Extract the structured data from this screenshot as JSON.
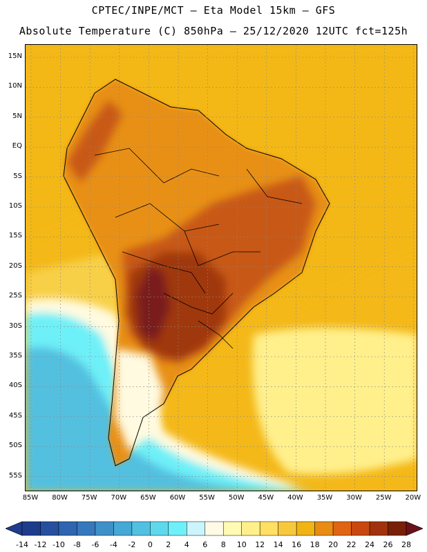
{
  "header": {
    "line1": "CPTEC/INPE/MCT –  Eta Model 15km – GFS",
    "line2": "Absolute Temperature (C) 850hPa – 25/12/2020 12UTC fct=125h"
  },
  "axes": {
    "lat_labels": [
      "15N",
      "10N",
      "5N",
      "EQ",
      "5S",
      "10S",
      "15S",
      "20S",
      "25S",
      "30S",
      "35S",
      "40S",
      "45S",
      "50S",
      "55S"
    ],
    "lon_labels": [
      "85W",
      "80W",
      "75W",
      "70W",
      "65W",
      "60W",
      "55W",
      "50W",
      "45W",
      "40W",
      "35W",
      "30W",
      "25W",
      "20W"
    ]
  },
  "colorbar": {
    "labels": [
      "-14",
      "-12",
      "-10",
      "-8",
      "-6",
      "-4",
      "-2",
      "0",
      "2",
      "4",
      "6",
      "8",
      "10",
      "12",
      "14",
      "16",
      "18",
      "20",
      "22",
      "24",
      "26",
      "28"
    ],
    "colors": [
      "#1e3c8c",
      "#26509e",
      "#2e64b0",
      "#3678bc",
      "#3e90c8",
      "#46a8d4",
      "#52c0e0",
      "#5ed8ec",
      "#6ef0f8",
      "#ccf4fc",
      "#fffae6",
      "#fffab4",
      "#fff08c",
      "#ffe064",
      "#f8c83c",
      "#f0b414",
      "#e88c14",
      "#e06414",
      "#c84810",
      "#a0320c",
      "#782008"
    ],
    "under_color": "#1e3c8c",
    "over_color": "#6e1018"
  },
  "map_colors": {
    "ocean_warm": "#f4b818",
    "ocean_mid": "#f8d046",
    "ocean_cool": "#fff08c",
    "land_warm": "#e89018",
    "land_hot": "#c85818",
    "land_hotter": "#a0380c",
    "land_hottest": "#7a1c1c",
    "cold_pale": "#fffae0",
    "cold_cyan": "#6ef0f8",
    "cold_blue": "#52c0e0",
    "grid": "#888888",
    "coast": "#000000"
  }
}
